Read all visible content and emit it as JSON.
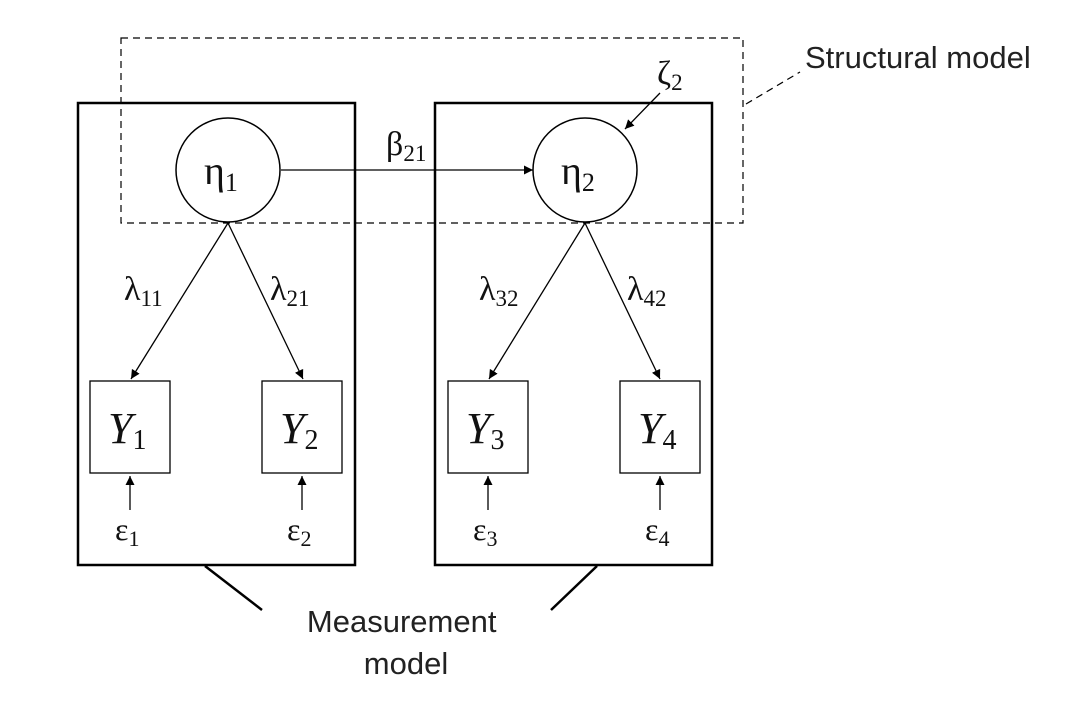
{
  "labels": {
    "structural_model": "Structural model",
    "measurement_model_line1": "Measurement",
    "measurement_model_line2": "model"
  },
  "latents": [
    {
      "symbol": "η",
      "subscript": "1"
    },
    {
      "symbol": "η",
      "subscript": "2"
    }
  ],
  "disturbance": {
    "symbol": "ζ",
    "subscript": "2"
  },
  "path": {
    "symbol": "β",
    "subscript": "21"
  },
  "loadings": [
    {
      "symbol": "λ",
      "subscript": "11"
    },
    {
      "symbol": "λ",
      "subscript": "21"
    },
    {
      "symbol": "λ",
      "subscript": "32"
    },
    {
      "symbol": "λ",
      "subscript": "42"
    }
  ],
  "indicators": [
    {
      "symbol": "Y",
      "subscript": "1"
    },
    {
      "symbol": "Y",
      "subscript": "2"
    },
    {
      "symbol": "Y",
      "subscript": "3"
    },
    {
      "symbol": "Y",
      "subscript": "4"
    }
  ],
  "errors": [
    {
      "symbol": "ε",
      "subscript": "1"
    },
    {
      "symbol": "ε",
      "subscript": "2"
    },
    {
      "symbol": "ε",
      "subscript": "3"
    },
    {
      "symbol": "ε",
      "subscript": "4"
    }
  ]
}
